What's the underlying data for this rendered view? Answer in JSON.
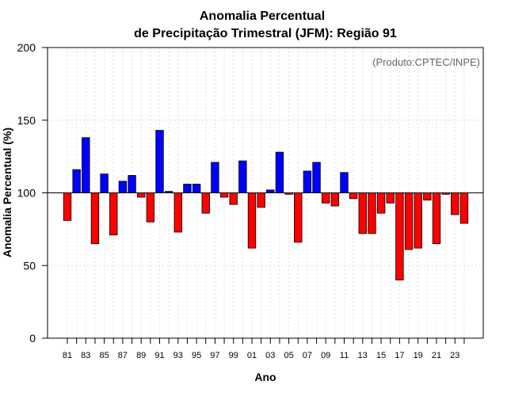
{
  "chart_data": {
    "type": "bar",
    "title": "Anomalia Percentual",
    "subtitle": "de Precipitação Trimestral (JFM): Região 91",
    "xlabel": "Ano",
    "ylabel": "Anomalia Percentual (%)",
    "annotation": "(Produto:CPTEC/INPE)",
    "ylim": [
      0,
      200
    ],
    "yticks": [
      0,
      50,
      100,
      150,
      200
    ],
    "baseline": 100,
    "grid": true,
    "colors": {
      "above": "#0000ff",
      "below": "#ff0000",
      "outline": "#000000",
      "grid": "#dddddd"
    },
    "categories": [
      "81",
      "82",
      "83",
      "84",
      "85",
      "86",
      "87",
      "88",
      "89",
      "90",
      "91",
      "92",
      "93",
      "94",
      "95",
      "96",
      "97",
      "98",
      "99",
      "00",
      "01",
      "02",
      "03",
      "04",
      "05",
      "06",
      "07",
      "08",
      "09",
      "10",
      "11",
      "12",
      "13",
      "14",
      "15",
      "16",
      "17",
      "18",
      "19",
      "20",
      "21",
      "22",
      "23",
      "24"
    ],
    "xtick_labels": [
      "81",
      "83",
      "85",
      "87",
      "89",
      "91",
      "93",
      "95",
      "97",
      "99",
      "01",
      "03",
      "05",
      "07",
      "09",
      "11",
      "13",
      "15",
      "17",
      "19",
      "21",
      "23"
    ],
    "values": [
      81,
      116,
      138,
      65,
      113,
      71,
      108,
      112,
      97,
      80,
      143,
      101,
      73,
      106,
      106,
      86,
      121,
      97,
      92,
      122,
      62,
      90,
      102,
      128,
      99,
      66,
      115,
      121,
      93,
      91,
      114,
      96,
      72,
      72,
      86,
      93,
      40,
      61,
      62,
      95,
      65,
      99,
      85,
      79
    ]
  }
}
